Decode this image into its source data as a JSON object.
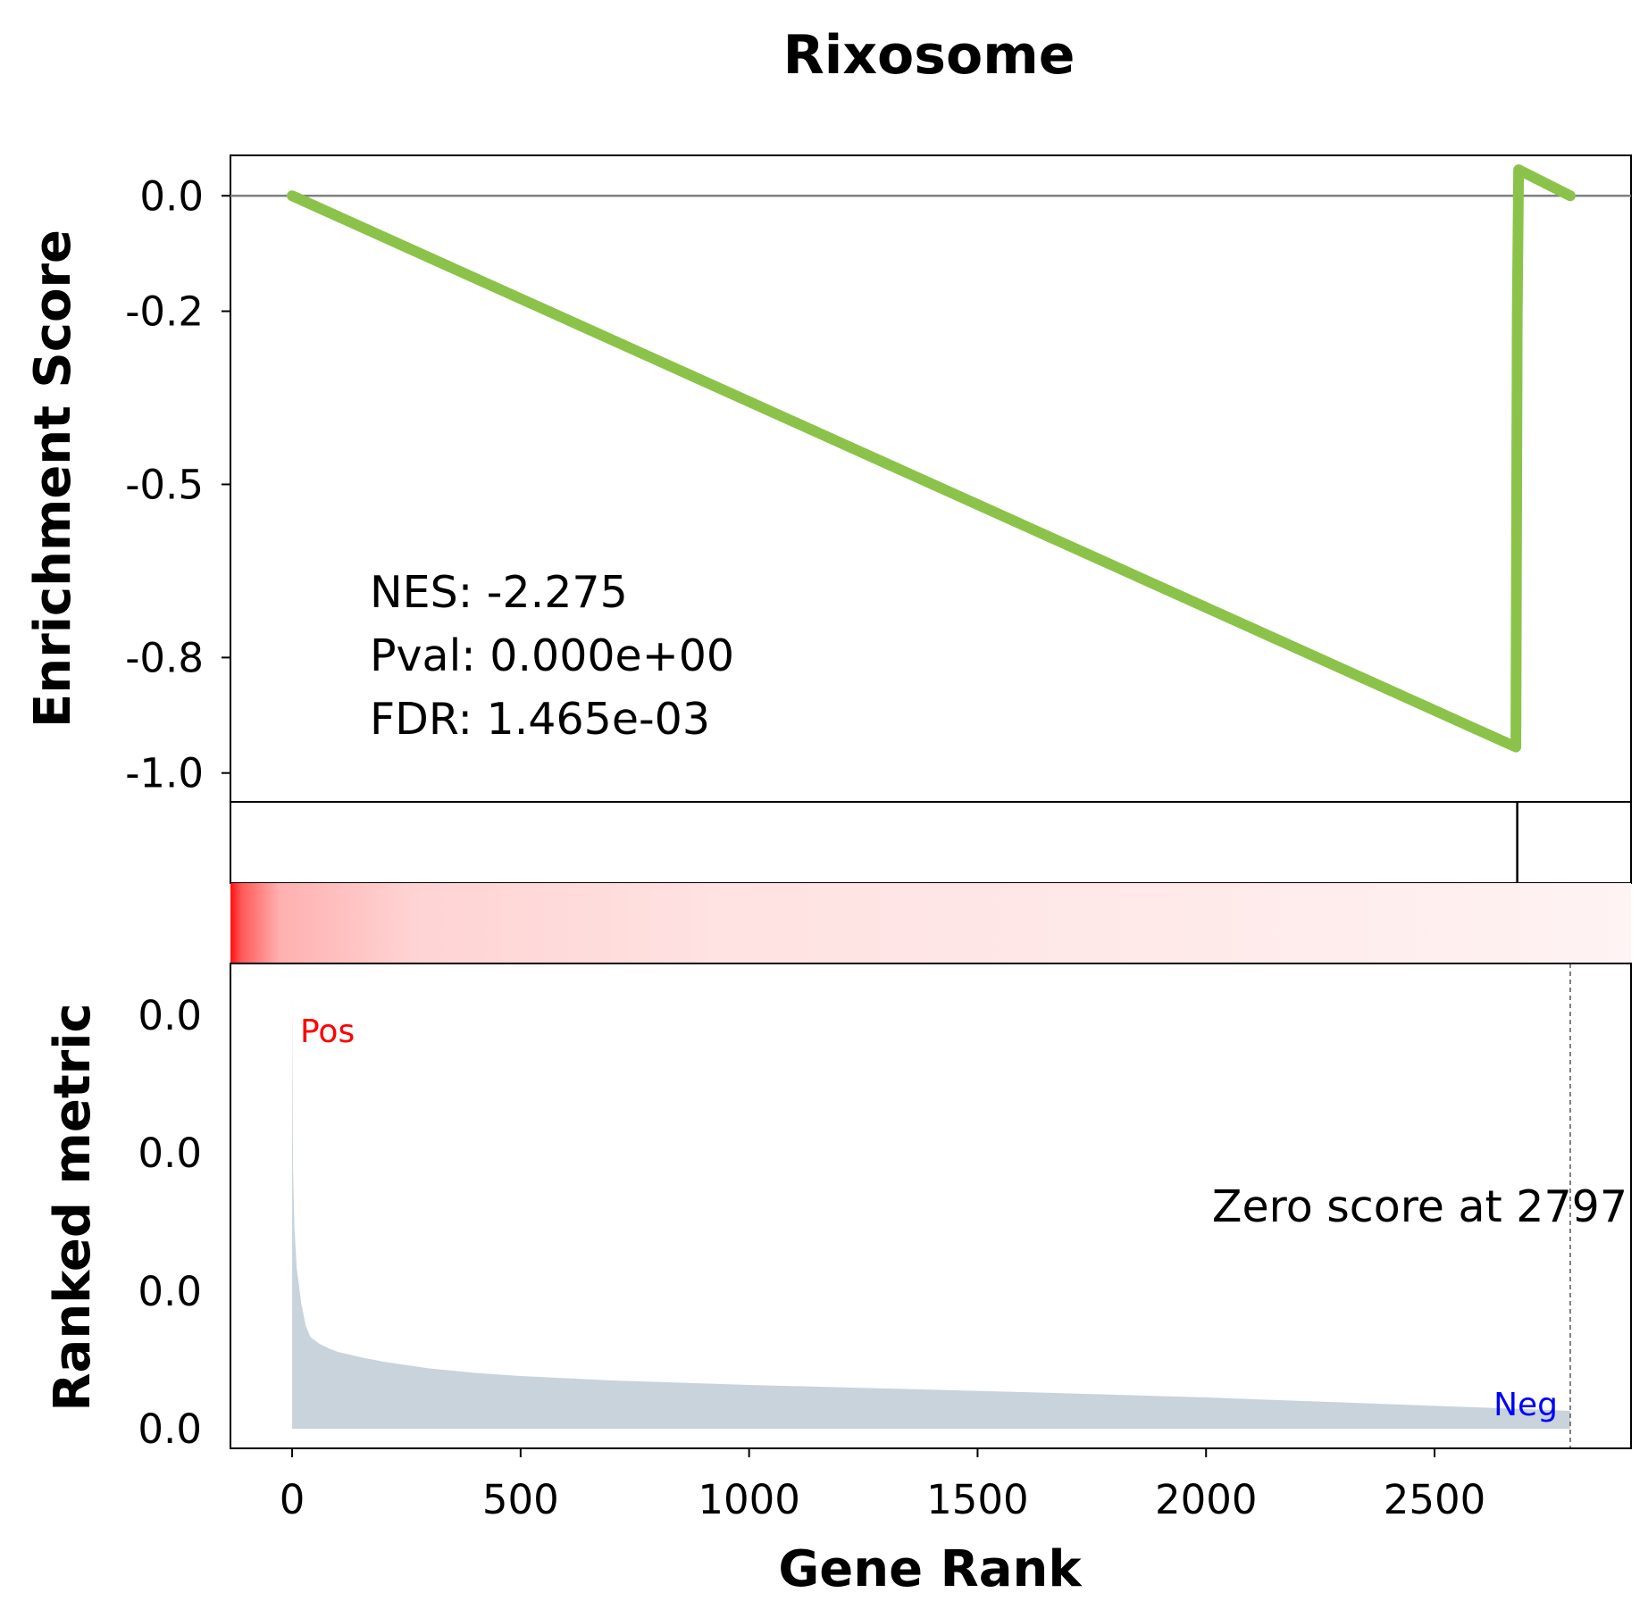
{
  "chart_data": {
    "type": "line",
    "title": "Rixosome",
    "es_panel": {
      "ylabel": "Enrichment Score",
      "ylim": [
        -1.05,
        0.07
      ],
      "yticks": [
        0.0,
        -0.2,
        -0.5,
        -0.8,
        -1.0
      ],
      "ytick_labels": [
        "0.0",
        "-0.2",
        "-0.5",
        "-0.8",
        "-1.0"
      ],
      "zero_line": 0.0,
      "line_color": "#8bc34a",
      "series": [
        {
          "x": [
            0,
            2678,
            2681,
            2684,
            2797
          ],
          "y": [
            0.0,
            -0.955,
            -0.205,
            0.045,
            0.0
          ]
        }
      ],
      "stats": {
        "nes": "NES: -2.275",
        "pval": "Pval: 0.000e+00",
        "fdr": "FDR: 1.465e-03"
      }
    },
    "hits_panel": {
      "hit_positions": [
        2681
      ]
    },
    "heatmap_panel": {
      "colormap": "white-to-red (high rank = red)"
    },
    "rank_panel": {
      "ylabel": "Ranked metric",
      "yticks_label": [
        "0.0",
        "0.0",
        "0.0",
        "0.0"
      ],
      "fill_color": "#c8d3dc",
      "pos_label": "Pos",
      "neg_label": "Neg",
      "pos_color": "#ff0000",
      "neg_color": "#0000ff",
      "zero_score_text": "Zero score at 2797",
      "zero_score_at": 2797,
      "x": [
        0,
        2,
        5,
        10,
        20,
        30,
        40,
        60,
        80,
        100,
        150,
        200,
        300,
        400,
        500,
        700,
        1000,
        1300,
        1600,
        2000,
        2400,
        2797
      ],
      "y": [
        0.97,
        0.58,
        0.45,
        0.36,
        0.28,
        0.23,
        0.205,
        0.19,
        0.18,
        0.172,
        0.16,
        0.15,
        0.135,
        0.125,
        0.118,
        0.108,
        0.098,
        0.09,
        0.082,
        0.07,
        0.055,
        0.04
      ]
    },
    "xlabel": "Gene Rank",
    "xlim": [
      -135,
      2930
    ],
    "xticks": [
      0,
      500,
      1000,
      1500,
      2000,
      2500
    ],
    "xtick_labels": [
      "0",
      "500",
      "1000",
      "1500",
      "2000",
      "2500"
    ]
  }
}
